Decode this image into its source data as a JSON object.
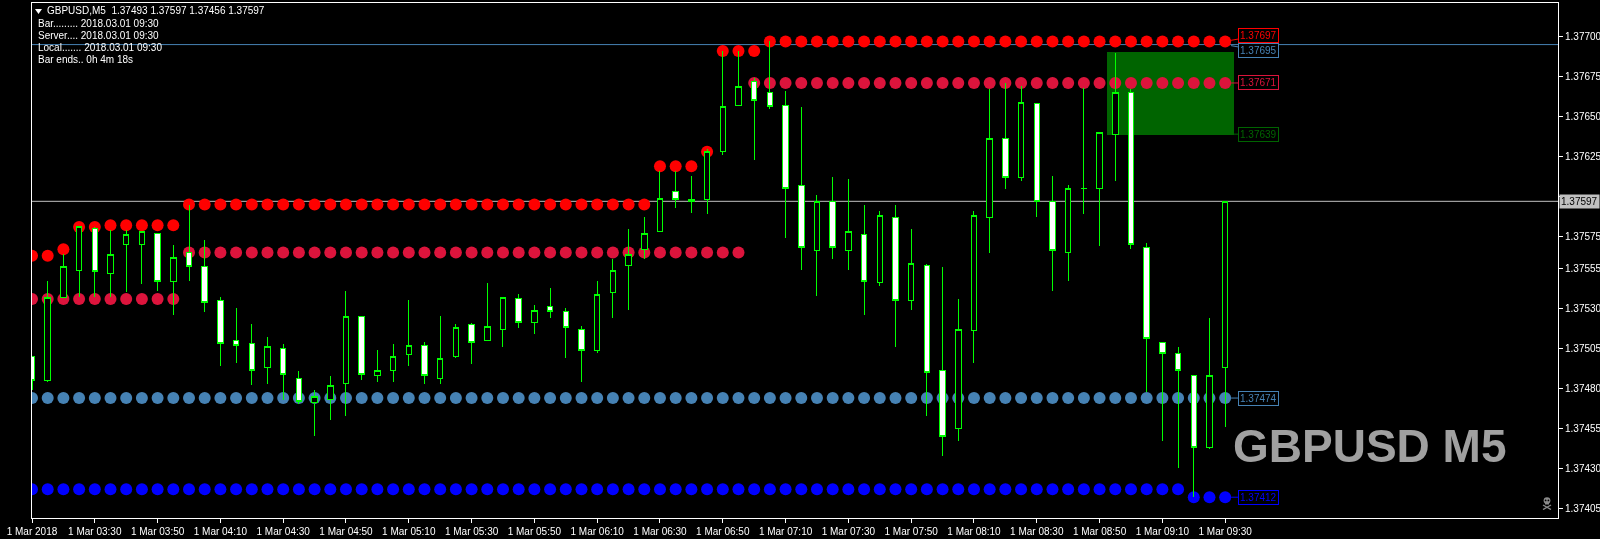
{
  "chart_data": {
    "type": "candlestick",
    "title": "GBPUSD,M5  1.37493 1.37597 1.37456 1.37597",
    "subtitle": "GBPUSD M5",
    "annotations": [
      "Bar......... 2018.03.01 09:30",
      "Server.... 2018.03.01 09:30",
      "Local....... 2018.03.01 09:30",
      "Bar ends.. 0h 4m 18s",
      {
        "text": "1.37695",
        "x": "2018-03-01T09:30",
        "y": 1.37695
      },
      {
        "text": "1.37639",
        "x": "2018-03-01T09:30",
        "y": 1.37639
      }
    ],
    "x": [
      "2018-03-01T03:10",
      "2018-03-01T03:15",
      "2018-03-01T03:20",
      "2018-03-01T03:25",
      "2018-03-01T03:30",
      "2018-03-01T03:35",
      "2018-03-01T03:40",
      "2018-03-01T03:45",
      "2018-03-01T03:50",
      "2018-03-01T03:55",
      "2018-03-01T04:00",
      "2018-03-01T04:05",
      "2018-03-01T04:10",
      "2018-03-01T04:15",
      "2018-03-01T04:20",
      "2018-03-01T04:25",
      "2018-03-01T04:30",
      "2018-03-01T04:35",
      "2018-03-01T04:40",
      "2018-03-01T04:45",
      "2018-03-01T04:50",
      "2018-03-01T04:55",
      "2018-03-01T05:00",
      "2018-03-01T05:05",
      "2018-03-01T05:10",
      "2018-03-01T05:15",
      "2018-03-01T05:20",
      "2018-03-01T05:25",
      "2018-03-01T05:30",
      "2018-03-01T05:35",
      "2018-03-01T05:40",
      "2018-03-01T05:45",
      "2018-03-01T05:50",
      "2018-03-01T05:55",
      "2018-03-01T06:00",
      "2018-03-01T06:05",
      "2018-03-01T06:10",
      "2018-03-01T06:15",
      "2018-03-01T06:20",
      "2018-03-01T06:25",
      "2018-03-01T06:30",
      "2018-03-01T06:35",
      "2018-03-01T06:40",
      "2018-03-01T06:45",
      "2018-03-01T06:50",
      "2018-03-01T06:55",
      "2018-03-01T07:00",
      "2018-03-01T07:05",
      "2018-03-01T07:10",
      "2018-03-01T07:15",
      "2018-03-01T07:20",
      "2018-03-01T07:25",
      "2018-03-01T07:30",
      "2018-03-01T07:35",
      "2018-03-01T07:40",
      "2018-03-01T07:45",
      "2018-03-01T07:50",
      "2018-03-01T07:55",
      "2018-03-01T08:00",
      "2018-03-01T08:05",
      "2018-03-01T08:10",
      "2018-03-01T08:15",
      "2018-03-01T08:20",
      "2018-03-01T08:25",
      "2018-03-01T08:30",
      "2018-03-01T08:35",
      "2018-03-01T08:40",
      "2018-03-01T08:45",
      "2018-03-01T08:50",
      "2018-03-01T08:55",
      "2018-03-01T09:00",
      "2018-03-01T09:05",
      "2018-03-01T09:10",
      "2018-03-01T09:15",
      "2018-03-01T09:20",
      "2018-03-01T09:25",
      "2018-03-01T09:30"
    ],
    "ohlc": [
      [
        1.375,
        1.375,
        1.37479,
        1.37485
      ],
      [
        1.37485,
        1.37547,
        1.37484,
        1.37537
      ],
      [
        1.37537,
        1.37564,
        1.37537,
        1.37556
      ],
      [
        1.37554,
        1.37581,
        1.37537,
        1.37581
      ],
      [
        1.3758,
        1.37581,
        1.37537,
        1.37553
      ],
      [
        1.37552,
        1.37579,
        1.37537,
        1.37564
      ],
      [
        1.3757,
        1.37579,
        1.3754,
        1.37576
      ],
      [
        1.3757,
        1.37578,
        1.37545,
        1.37578
      ],
      [
        1.37577,
        1.37577,
        1.37541,
        1.37547
      ],
      [
        1.37547,
        1.3757,
        1.37526,
        1.37562
      ],
      [
        1.37565,
        1.37595,
        1.37547,
        1.37556
      ],
      [
        1.37556,
        1.37573,
        1.37528,
        1.37534
      ],
      [
        1.37535,
        1.37537,
        1.37494,
        1.37508
      ],
      [
        1.3751,
        1.3753,
        1.37496,
        1.37507
      ],
      [
        1.37508,
        1.3752,
        1.37482,
        1.37491
      ],
      [
        1.37493,
        1.37512,
        1.37483,
        1.37506
      ],
      [
        1.37505,
        1.37508,
        1.37473,
        1.37489
      ],
      [
        1.37486,
        1.37491,
        1.3747,
        1.37472
      ],
      [
        1.37471,
        1.37479,
        1.3745,
        1.37475
      ],
      [
        1.37473,
        1.37488,
        1.3746,
        1.37482
      ],
      [
        1.37483,
        1.37541,
        1.37463,
        1.37525
      ],
      [
        1.37525,
        1.37525,
        1.37485,
        1.37489
      ],
      [
        1.37488,
        1.37504,
        1.37484,
        1.37491
      ],
      [
        1.37491,
        1.37508,
        1.37484,
        1.375
      ],
      [
        1.37501,
        1.37535,
        1.37494,
        1.37507
      ],
      [
        1.37507,
        1.37509,
        1.37483,
        1.37488
      ],
      [
        1.37486,
        1.37525,
        1.37483,
        1.37499
      ],
      [
        1.375,
        1.3752,
        1.37499,
        1.37518
      ],
      [
        1.3752,
        1.37521,
        1.37495,
        1.37509
      ],
      [
        1.3751,
        1.37546,
        1.3751,
        1.37519
      ],
      [
        1.37517,
        1.37537,
        1.37506,
        1.37537
      ],
      [
        1.37536,
        1.37539,
        1.37518,
        1.37521
      ],
      [
        1.37521,
        1.37532,
        1.37514,
        1.37529
      ],
      [
        1.37531,
        1.37543,
        1.37524,
        1.37528
      ],
      [
        1.37528,
        1.3753,
        1.37499,
        1.37518
      ],
      [
        1.37517,
        1.37519,
        1.37484,
        1.37504
      ],
      [
        1.37504,
        1.37547,
        1.37502,
        1.37539
      ],
      [
        1.3754,
        1.37561,
        1.37524,
        1.37554
      ],
      [
        1.37557,
        1.3758,
        1.37529,
        1.37564
      ],
      [
        1.37567,
        1.37587,
        1.37561,
        1.37577
      ],
      [
        1.37578,
        1.37616,
        1.37578,
        1.37599
      ],
      [
        1.37603,
        1.37616,
        1.37593,
        1.37598
      ],
      [
        1.37597,
        1.37613,
        1.3759,
        1.37598
      ],
      [
        1.37598,
        1.3763,
        1.37589,
        1.37628
      ],
      [
        1.37628,
        1.37691,
        1.37626,
        1.37656
      ],
      [
        1.37657,
        1.37691,
        1.37657,
        1.37669
      ],
      [
        1.37672,
        1.37674,
        1.37623,
        1.3766
      ],
      [
        1.37665,
        1.37697,
        1.37655,
        1.37656
      ],
      [
        1.37657,
        1.37666,
        1.37574,
        1.37605
      ],
      [
        1.37607,
        1.37656,
        1.37554,
        1.37568
      ],
      [
        1.37566,
        1.37601,
        1.37538,
        1.37597
      ],
      [
        1.37597,
        1.37612,
        1.37561,
        1.37568
      ],
      [
        1.37566,
        1.37611,
        1.37554,
        1.37578
      ],
      [
        1.37576,
        1.37595,
        1.37526,
        1.37547
      ],
      [
        1.37546,
        1.37591,
        1.37544,
        1.37588
      ],
      [
        1.37587,
        1.37595,
        1.37506,
        1.37535
      ],
      [
        1.37535,
        1.3758,
        1.37529,
        1.37558
      ],
      [
        1.37557,
        1.37558,
        1.37463,
        1.3749
      ],
      [
        1.37491,
        1.37556,
        1.37438,
        1.3745
      ],
      [
        1.37455,
        1.37536,
        1.37447,
        1.37517
      ],
      [
        1.37516,
        1.37591,
        1.37496,
        1.37588
      ],
      [
        1.37587,
        1.37667,
        1.37565,
        1.37636
      ],
      [
        1.37636,
        1.37671,
        1.37605,
        1.37612
      ],
      [
        1.37612,
        1.37669,
        1.3761,
        1.37659
      ],
      [
        1.37658,
        1.37658,
        1.37587,
        1.37597
      ],
      [
        1.37597,
        1.37613,
        1.37541,
        1.37566
      ],
      [
        1.37565,
        1.37607,
        1.37547,
        1.37605
      ],
      [
        1.37605,
        1.37668,
        1.37589,
        1.37605
      ],
      [
        1.37605,
        1.3764,
        1.37569,
        1.3764
      ],
      [
        1.37639,
        1.3769,
        1.3761,
        1.37665
      ],
      [
        1.37665,
        1.37667,
        1.37567,
        1.3757
      ],
      [
        1.37568,
        1.37571,
        1.37478,
        1.37511
      ],
      [
        1.37509,
        1.37509,
        1.37447,
        1.37502
      ],
      [
        1.37502,
        1.37506,
        1.3743,
        1.37491
      ],
      [
        1.37488,
        1.37488,
        1.37412,
        1.37443
      ],
      [
        1.37443,
        1.37524,
        1.37442,
        1.37488
      ],
      [
        1.37493,
        1.37597,
        1.37456,
        1.37597
      ]
    ],
    "color": "#00ff00",
    "colors": [
      "#ffffff",
      "#000000",
      "#000000",
      "#000000",
      "#ffffff",
      "#000000",
      "#000000",
      "#000000",
      "#ffffff",
      "#000000",
      "#ffffff",
      "#ffffff",
      "#ffffff",
      "#ffffff",
      "#ffffff",
      "#000000",
      "#ffffff",
      "#ffffff",
      "#000000",
      "#000000",
      "#000000",
      "#ffffff",
      "#000000",
      "#000000",
      "#000000",
      "#ffffff",
      "#000000",
      "#000000",
      "#ffffff",
      "#000000",
      "#000000",
      "#ffffff",
      "#000000",
      "#ffffff",
      "#ffffff",
      "#ffffff",
      "#000000",
      "#000000",
      "#000000",
      "#000000",
      "#000000",
      "#ffffff",
      "#00ff00",
      "#000000",
      "#000000",
      "#000000",
      "#ffffff",
      "#ffffff",
      "#ffffff",
      "#ffffff",
      "#000000",
      "#ffffff",
      "#000000",
      "#ffffff",
      "#000000",
      "#ffffff",
      "#000000",
      "#ffffff",
      "#ffffff",
      "#000000",
      "#000000",
      "#000000",
      "#ffffff",
      "#000000",
      "#ffffff",
      "#ffffff",
      "#000000",
      "#00ff00",
      "#000000",
      "#000000",
      "#ffffff",
      "#ffffff",
      "#ffffff",
      "#ffffff",
      "#ffffff",
      "#000000",
      "#000000"
    ],
    "marker": "circle",
    "series": [
      {
        "type": "bar",
        "color": "#006400",
        "x": [
          "2018-03-01T08:55",
          "2018-03-01T09:00",
          "2018-03-01T09:05",
          "2018-03-01T09:10",
          "2018-03-01T09:15",
          "2018-03-01T09:20",
          "2018-03-01T09:25",
          "2018-03-01T09:30"
        ],
        "base": [
          1.37639,
          1.37639,
          1.37639,
          1.37639,
          1.37639,
          1.37639,
          1.37639,
          1.37639
        ],
        "values": [
          0.00051,
          0.00051,
          0.00051,
          0.00051,
          0.00051,
          0.00051,
          0.00051,
          0.00051
        ]
      },
      {
        "type": "scatter",
        "color": "#ff0000",
        "values": [
          1.37563,
          1.37563,
          1.37567,
          1.37581,
          1.37581,
          1.37582,
          1.37582,
          1.37582,
          1.37582,
          1.37582,
          1.37595,
          1.37595,
          1.37595,
          1.37595,
          1.37595,
          1.37595,
          1.37595,
          1.37595,
          1.37595,
          1.37595,
          1.37595,
          1.37595,
          1.37595,
          1.37595,
          1.37595,
          1.37595,
          1.37595,
          1.37595,
          1.37595,
          1.37595,
          1.37595,
          1.37595,
          1.37595,
          1.37595,
          1.37595,
          1.37595,
          1.37595,
          1.37595,
          1.37595,
          1.37595,
          1.37619,
          1.37619,
          1.37619,
          1.37628,
          1.37691,
          1.37691,
          1.37691,
          1.37697,
          1.37697,
          1.37697,
          1.37697,
          1.37697,
          1.37697,
          1.37697,
          1.37697,
          1.37697,
          1.37697,
          1.37697,
          1.37697,
          1.37697,
          1.37697,
          1.37697,
          1.37697,
          1.37697,
          1.37697,
          1.37697,
          1.37697,
          1.37697,
          1.37697,
          1.37697,
          1.37697,
          1.37697,
          1.37697,
          1.37697,
          1.37697,
          1.37697,
          1.37697
        ],
        "value_labels": [
          null,
          null,
          null,
          null,
          null,
          null,
          null,
          null,
          null,
          null,
          null,
          null,
          null,
          null,
          null,
          null,
          null,
          null,
          null,
          null,
          null,
          null,
          null,
          null,
          null,
          null,
          null,
          null,
          null,
          null,
          null,
          null,
          null,
          null,
          null,
          null,
          null,
          null,
          null,
          null,
          null,
          null,
          null,
          null,
          null,
          null,
          null,
          null,
          null,
          null,
          null,
          null,
          null,
          null,
          null,
          null,
          null,
          null,
          null,
          null,
          null,
          null,
          null,
          null,
          null,
          null,
          null,
          null,
          null,
          null,
          null,
          null,
          null,
          null,
          null,
          null,
          "1.37697"
        ]
      },
      {
        "type": "scatter",
        "color": "#dc143c",
        "values": [
          1.37536,
          1.37536,
          1.37536,
          1.37536,
          1.37536,
          1.37536,
          1.37536,
          1.37536,
          1.37536,
          1.37536,
          1.37565,
          1.37565,
          1.37565,
          1.37565,
          1.37565,
          1.37565,
          1.37565,
          1.37565,
          1.37565,
          1.37565,
          1.37565,
          1.37565,
          1.37565,
          1.37565,
          1.37565,
          1.37565,
          1.37565,
          1.37565,
          1.37565,
          1.37565,
          1.37565,
          1.37565,
          1.37565,
          1.37565,
          1.37565,
          1.37565,
          1.37565,
          1.37565,
          1.37565,
          1.37565,
          1.37565,
          1.37565,
          1.37565,
          1.37565,
          1.37565,
          1.37565,
          1.37671,
          1.37671,
          1.37671,
          1.37671,
          1.37671,
          1.37671,
          1.37671,
          1.37671,
          1.37671,
          1.37671,
          1.37671,
          1.37671,
          1.37671,
          1.37671,
          1.37671,
          1.37671,
          1.37671,
          1.37671,
          1.37671,
          1.37671,
          1.37671,
          1.37671,
          1.37671,
          1.37671,
          1.37671,
          1.37671,
          1.37671,
          1.37671,
          1.37671,
          1.37671,
          1.37671
        ],
        "value_labels": [
          null,
          null,
          null,
          null,
          null,
          null,
          null,
          null,
          null,
          null,
          null,
          null,
          null,
          null,
          null,
          null,
          null,
          null,
          null,
          null,
          null,
          null,
          null,
          null,
          null,
          null,
          null,
          null,
          null,
          null,
          null,
          null,
          null,
          null,
          null,
          null,
          null,
          null,
          null,
          null,
          null,
          null,
          null,
          null,
          null,
          null,
          null,
          null,
          null,
          null,
          null,
          null,
          null,
          null,
          null,
          null,
          null,
          null,
          null,
          null,
          null,
          null,
          null,
          null,
          null,
          null,
          null,
          null,
          null,
          null,
          null,
          null,
          null,
          null,
          null,
          null,
          "1.37671"
        ]
      },
      {
        "type": "scatter",
        "color": "#4682b4",
        "values": [
          1.37474,
          1.37474,
          1.37474,
          1.37474,
          1.37474,
          1.37474,
          1.37474,
          1.37474,
          1.37474,
          1.37474,
          1.37474,
          1.37474,
          1.37474,
          1.37474,
          1.37474,
          1.37474,
          1.37474,
          1.37474,
          1.37474,
          1.37474,
          1.37474,
          1.37474,
          1.37474,
          1.37474,
          1.37474,
          1.37474,
          1.37474,
          1.37474,
          1.37474,
          1.37474,
          1.37474,
          1.37474,
          1.37474,
          1.37474,
          1.37474,
          1.37474,
          1.37474,
          1.37474,
          1.37474,
          1.37474,
          1.37474,
          1.37474,
          1.37474,
          1.37474,
          1.37474,
          1.37474,
          1.37474,
          1.37474,
          1.37474,
          1.37474,
          1.37474,
          1.37474,
          1.37474,
          1.37474,
          1.37474,
          1.37474,
          1.37474,
          1.37474,
          1.37474,
          1.37474,
          1.37474,
          1.37474,
          1.37474,
          1.37474,
          1.37474,
          1.37474,
          1.37474,
          1.37474,
          1.37474,
          1.37474,
          1.37474,
          1.37474,
          1.37474,
          1.37474,
          1.37474,
          1.37474,
          1.37474
        ],
        "value_labels": [
          null,
          null,
          null,
          null,
          null,
          null,
          null,
          null,
          null,
          null,
          null,
          null,
          null,
          null,
          null,
          null,
          null,
          null,
          null,
          null,
          null,
          null,
          null,
          null,
          null,
          null,
          null,
          null,
          null,
          null,
          null,
          null,
          null,
          null,
          null,
          null,
          null,
          null,
          null,
          null,
          null,
          null,
          null,
          null,
          null,
          null,
          null,
          null,
          null,
          null,
          null,
          null,
          null,
          null,
          null,
          null,
          null,
          null,
          null,
          null,
          null,
          null,
          null,
          null,
          null,
          null,
          null,
          null,
          null,
          null,
          null,
          null,
          null,
          null,
          null,
          null,
          "1.37474"
        ]
      },
      {
        "type": "scatter",
        "color": "#0000ff",
        "values": [
          1.37417,
          1.37417,
          1.37417,
          1.37417,
          1.37417,
          1.37417,
          1.37417,
          1.37417,
          1.37417,
          1.37417,
          1.37417,
          1.37417,
          1.37417,
          1.37417,
          1.37417,
          1.37417,
          1.37417,
          1.37417,
          1.37417,
          1.37417,
          1.37417,
          1.37417,
          1.37417,
          1.37417,
          1.37417,
          1.37417,
          1.37417,
          1.37417,
          1.37417,
          1.37417,
          1.37417,
          1.37417,
          1.37417,
          1.37417,
          1.37417,
          1.37417,
          1.37417,
          1.37417,
          1.37417,
          1.37417,
          1.37417,
          1.37417,
          1.37417,
          1.37417,
          1.37417,
          1.37417,
          1.37417,
          1.37417,
          1.37417,
          1.37417,
          1.37417,
          1.37417,
          1.37417,
          1.37417,
          1.37417,
          1.37417,
          1.37417,
          1.37417,
          1.37417,
          1.37417,
          1.37417,
          1.37417,
          1.37417,
          1.37417,
          1.37417,
          1.37417,
          1.37417,
          1.37417,
          1.37417,
          1.37417,
          1.37417,
          1.37417,
          1.37417,
          1.37417,
          1.37412,
          1.37412,
          1.37412
        ],
        "value_labels": [
          null,
          null,
          null,
          null,
          null,
          null,
          null,
          null,
          null,
          null,
          null,
          null,
          null,
          null,
          null,
          null,
          null,
          null,
          null,
          null,
          null,
          null,
          null,
          null,
          null,
          null,
          null,
          null,
          null,
          null,
          null,
          null,
          null,
          null,
          null,
          null,
          null,
          null,
          null,
          null,
          null,
          null,
          null,
          null,
          null,
          null,
          null,
          null,
          null,
          null,
          null,
          null,
          null,
          null,
          null,
          null,
          null,
          null,
          null,
          null,
          null,
          null,
          null,
          null,
          null,
          null,
          null,
          null,
          null,
          null,
          null,
          null,
          null,
          null,
          null,
          null,
          "1.37412"
        ]
      }
    ],
    "ref_lines": [
      {
        "axis": "y",
        "value": 1.37695,
        "color": "#4682b4"
      },
      {
        "axis": "y",
        "value": 1.37597,
        "color": "#c0c0c0",
        "label": "1.37597"
      }
    ],
    "xlim": [
      "2018-03-01T03:10",
      "2018-03-01T11:16"
    ],
    "xticks": [
      {
        "value": "2018-03-01T03:10",
        "label": "1 Mar 2018"
      },
      {
        "value": "2018-03-01T03:30",
        "label": "1 Mar 03:30"
      },
      {
        "value": "2018-03-01T03:50",
        "label": "1 Mar 03:50"
      },
      {
        "value": "2018-03-01T04:10",
        "label": "1 Mar 04:10"
      },
      {
        "value": "2018-03-01T04:30",
        "label": "1 Mar 04:30"
      },
      {
        "value": "2018-03-01T04:50",
        "label": "1 Mar 04:50"
      },
      {
        "value": "2018-03-01T05:10",
        "label": "1 Mar 05:10"
      },
      {
        "value": "2018-03-01T05:30",
        "label": "1 Mar 05:30"
      },
      {
        "value": "2018-03-01T05:50",
        "label": "1 Mar 05:50"
      },
      {
        "value": "2018-03-01T06:10",
        "label": "1 Mar 06:10"
      },
      {
        "value": "2018-03-01T06:30",
        "label": "1 Mar 06:30"
      },
      {
        "value": "2018-03-01T06:50",
        "label": "1 Mar 06:50"
      },
      {
        "value": "2018-03-01T07:10",
        "label": "1 Mar 07:10"
      },
      {
        "value": "2018-03-01T07:30",
        "label": "1 Mar 07:30"
      },
      {
        "value": "2018-03-01T07:50",
        "label": "1 Mar 07:50"
      },
      {
        "value": "2018-03-01T08:10",
        "label": "1 Mar 08:10"
      },
      {
        "value": "2018-03-01T08:30",
        "label": "1 Mar 08:30"
      },
      {
        "value": "2018-03-01T08:50",
        "label": "1 Mar 08:50"
      },
      {
        "value": "2018-03-01T09:10",
        "label": "1 Mar 09:10"
      },
      {
        "value": "2018-03-01T09:30",
        "label": "1 Mar 09:30"
      }
    ],
    "ylim": [
      1.37399,
      1.37721
    ],
    "yticks": [
      {
        "value": 1.377,
        "label": "1.37700"
      },
      {
        "value": 1.37675,
        "label": "1.37675"
      },
      {
        "value": 1.3765,
        "label": "1.37650"
      },
      {
        "value": 1.37625,
        "label": "1.37625"
      },
      {
        "value": 1.376,
        "label": null
      },
      {
        "value": 1.37575,
        "label": "1.37575"
      },
      {
        "value": 1.37555,
        "label": "1.37555"
      },
      {
        "value": 1.3753,
        "label": "1.37530"
      },
      {
        "value": 1.37505,
        "label": "1.37505"
      },
      {
        "value": 1.3748,
        "label": "1.37480"
      },
      {
        "value": 1.37455,
        "label": "1.37455"
      },
      {
        "value": 1.3743,
        "label": "1.37430"
      },
      {
        "value": 1.37405,
        "label": "1.37405"
      }
    ]
  }
}
